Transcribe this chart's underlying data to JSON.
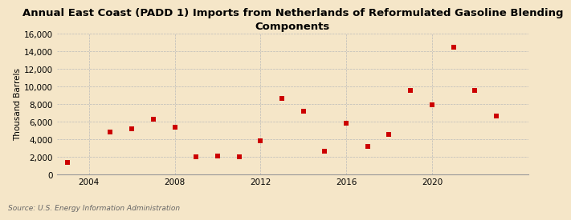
{
  "title": "Annual East Coast (PADD 1) Imports from Netherlands of Reformulated Gasoline Blending\nComponents",
  "ylabel": "Thousand Barrels",
  "source": "Source: U.S. Energy Information Administration",
  "background_color": "#f5e6c8",
  "plot_bg_color": "#f5e6c8",
  "marker_color": "#cc0000",
  "marker_size": 5,
  "years": [
    2003,
    2005,
    2006,
    2007,
    2008,
    2009,
    2010,
    2011,
    2012,
    2013,
    2014,
    2015,
    2016,
    2017,
    2018,
    2019,
    2020,
    2021,
    2022,
    2023
  ],
  "values": [
    1400,
    4800,
    5200,
    6300,
    5400,
    2000,
    2100,
    2000,
    3800,
    8700,
    7200,
    2700,
    5800,
    3200,
    4600,
    9600,
    7900,
    14500,
    9600,
    6700
  ],
  "ylim": [
    0,
    16000
  ],
  "yticks": [
    0,
    2000,
    4000,
    6000,
    8000,
    10000,
    12000,
    14000,
    16000
  ],
  "xlim": [
    2002.5,
    2024.5
  ],
  "xticks": [
    2004,
    2008,
    2012,
    2016,
    2020
  ],
  "grid_color": "#bbbbbb",
  "grid_lw": 0.5,
  "title_fontsize": 9.5,
  "tick_fontsize": 7.5,
  "ylabel_fontsize": 7.5,
  "source_fontsize": 6.5
}
